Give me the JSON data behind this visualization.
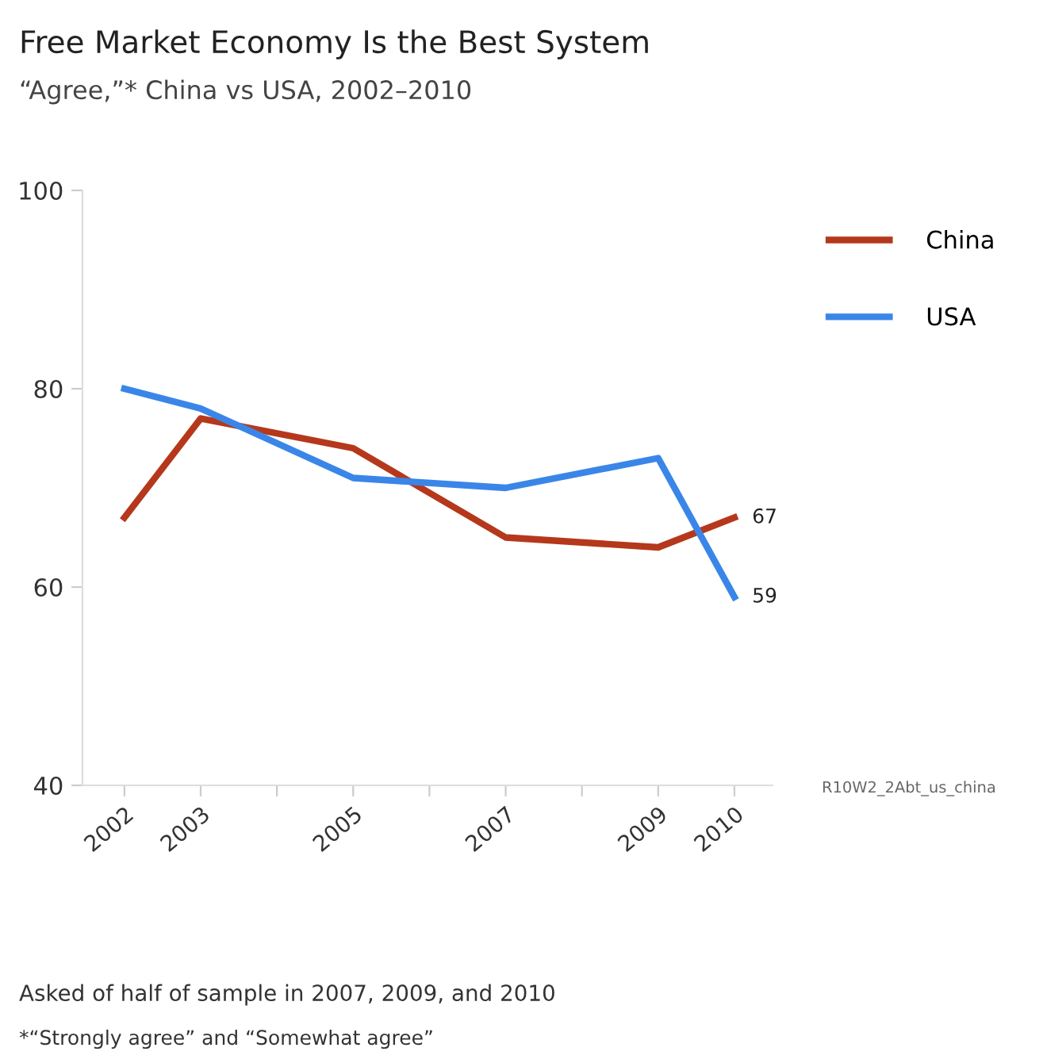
{
  "chart_data": {
    "type": "line",
    "title": "Free Market Economy Is the Best System",
    "subtitle": "“Agree,”* China vs USA, 2002–2010",
    "x": [
      2002,
      2003,
      2005,
      2007,
      2009,
      2010
    ],
    "series": [
      {
        "name": "China",
        "color": "#b5381c",
        "values": [
          67,
          77,
          74,
          65,
          64,
          67
        ],
        "value_labels": [
          null,
          null,
          null,
          null,
          null,
          "67"
        ]
      },
      {
        "name": "USA",
        "color": "#3a86e8",
        "values": [
          80,
          78,
          71,
          70,
          73,
          59
        ],
        "value_labels": [
          null,
          null,
          null,
          null,
          null,
          "59"
        ]
      }
    ],
    "xlim": [
      2001.45,
      2010.5
    ],
    "xticks": [
      2002,
      2003,
      {
        "value": 2004,
        "label": null
      },
      2005,
      {
        "value": 2006,
        "label": null
      },
      2007,
      {
        "value": 2008,
        "label": null
      },
      2009,
      2010
    ],
    "ylim": [
      40,
      100
    ],
    "yticks": [
      40,
      60,
      80,
      100
    ],
    "grid": false,
    "legend": "right",
    "marker": "none",
    "line_style": "solid",
    "annotations": [
      "R10W2_2Abt_us_china",
      "Asked of half of sample in 2007, 2009, and 2010",
      "*“Strongly agree” and “Somewhat agree”"
    ]
  }
}
